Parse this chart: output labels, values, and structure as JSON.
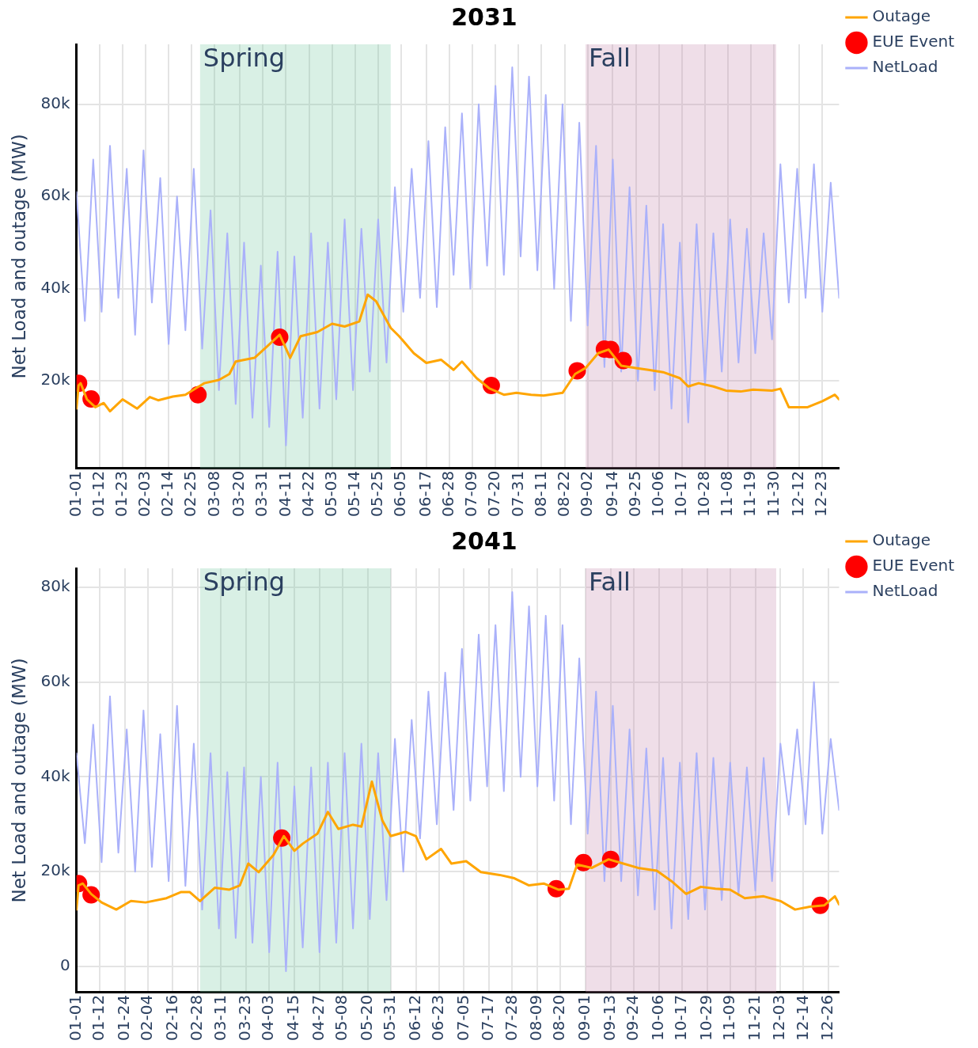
{
  "chart_data": [
    {
      "type": "line",
      "title": "2031",
      "ylabel": "Net Load and outage (MW)",
      "xlim": [
        "--01-01",
        "--12-31"
      ],
      "ylim": [
        1000,
        93000
      ],
      "xticks": [
        {
          "value": "--01-01",
          "label": "01-01"
        },
        {
          "value": "--01-12",
          "label": "01-12"
        },
        {
          "value": "--01-23",
          "label": "01-23"
        },
        {
          "value": "--02-03",
          "label": "02-03"
        },
        {
          "value": "--02-14",
          "label": "02-14"
        },
        {
          "value": "--02-25",
          "label": "02-25"
        },
        {
          "value": "--03-08",
          "label": "03-08"
        },
        {
          "value": "--03-20",
          "label": "03-20"
        },
        {
          "value": "--03-31",
          "label": "03-31"
        },
        {
          "value": "--04-11",
          "label": "04-11"
        },
        {
          "value": "--04-22",
          "label": "04-22"
        },
        {
          "value": "--05-03",
          "label": "05-03"
        },
        {
          "value": "--05-14",
          "label": "05-14"
        },
        {
          "value": "--05-25",
          "label": "05-25"
        },
        {
          "value": "--06-05",
          "label": "06-05"
        },
        {
          "value": "--06-17",
          "label": "06-17"
        },
        {
          "value": "--06-28",
          "label": "06-28"
        },
        {
          "value": "--07-09",
          "label": "07-09"
        },
        {
          "value": "--07-20",
          "label": "07-20"
        },
        {
          "value": "--07-31",
          "label": "07-31"
        },
        {
          "value": "--08-11",
          "label": "08-11"
        },
        {
          "value": "--08-22",
          "label": "08-22"
        },
        {
          "value": "--09-02",
          "label": "09-02"
        },
        {
          "value": "--09-14",
          "label": "09-14"
        },
        {
          "value": "--09-25",
          "label": "09-25"
        },
        {
          "value": "--10-06",
          "label": "10-06"
        },
        {
          "value": "--10-17",
          "label": "10-17"
        },
        {
          "value": "--10-28",
          "label": "10-28"
        },
        {
          "value": "--11-08",
          "label": "11-08"
        },
        {
          "value": "--11-19",
          "label": "11-19"
        },
        {
          "value": "--11-30",
          "label": "11-30"
        },
        {
          "value": "--12-12",
          "label": "12-12"
        },
        {
          "value": "--12-23",
          "label": "12-23"
        }
      ],
      "yticks": [
        {
          "value": 20000,
          "label": "20k"
        },
        {
          "value": 40000,
          "label": "40k"
        },
        {
          "value": 60000,
          "label": "60k"
        },
        {
          "value": 80000,
          "label": "80k"
        }
      ],
      "grid": true,
      "legend": "top right",
      "line_style": "solid",
      "bands": [
        {
          "axis": "x",
          "from": "--03-01",
          "to": "--05-31",
          "label": "Spring",
          "color": "#77c9a3"
        },
        {
          "axis": "x",
          "from": "--09-01",
          "to": "--12-01",
          "label": "Fall",
          "color": "#c78aad"
        }
      ],
      "series": [
        {
          "name": "Outage",
          "type": "line",
          "color": "#ffa500",
          "marker": "none",
          "x": [
            "--01-01",
            "--01-02",
            "--01-03",
            "--01-06",
            "--01-10",
            "--01-14",
            "--01-17",
            "--01-23",
            "--01-30",
            "--02-05",
            "--02-09",
            "--02-16",
            "--02-22",
            "--02-27",
            "--03-03",
            "--03-10",
            "--03-15",
            "--03-18",
            "--03-27",
            "--04-02",
            "--04-08",
            "--04-13",
            "--04-18",
            "--04-26",
            "--05-03",
            "--05-09",
            "--05-16",
            "--05-20",
            "--05-24",
            "--05-31",
            "--06-04",
            "--06-11",
            "--06-17",
            "--06-24",
            "--06-30",
            "--07-04",
            "--07-11",
            "--07-17",
            "--07-24",
            "--07-30",
            "--08-06",
            "--08-12",
            "--08-21",
            "--08-27",
            "--09-01",
            "--09-07",
            "--09-12",
            "--09-18",
            "--09-25",
            "--10-01",
            "--10-08",
            "--10-16",
            "--10-20",
            "--10-25",
            "--11-01",
            "--11-07",
            "--11-14",
            "--11-20",
            "--11-29",
            "--12-03",
            "--12-07",
            "--12-16",
            "--12-23",
            "--12-29",
            "--12-31"
          ],
          "values": [
            14000,
            19000,
            19500,
            16000,
            14300,
            15200,
            13400,
            16000,
            14000,
            16500,
            15800,
            16600,
            17000,
            18400,
            19500,
            20200,
            21500,
            24200,
            25000,
            27500,
            30000,
            25000,
            29700,
            30600,
            32400,
            31800,
            32900,
            38700,
            37300,
            31500,
            29700,
            26000,
            23900,
            24600,
            22400,
            24200,
            20600,
            18400,
            17000,
            17400,
            17000,
            16800,
            17400,
            21500,
            22800,
            26000,
            26800,
            23300,
            22800,
            22400,
            21900,
            20600,
            18800,
            19500,
            18800,
            17900,
            17700,
            18100,
            17900,
            18300,
            14300,
            14300,
            15600,
            17000,
            16000
          ]
        },
        {
          "name": "EUE Event",
          "type": "scatter",
          "color": "#ff0000",
          "marker": "circle",
          "x": [
            "--01-02",
            "--01-08",
            "--02-28",
            "--04-08",
            "--07-18",
            "--08-28",
            "--09-10",
            "--09-13",
            "--09-19"
          ],
          "values": [
            19500,
            16100,
            17000,
            29500,
            19000,
            22200,
            26900,
            26800,
            24400
          ]
        },
        {
          "name": "NetLoad",
          "type": "line",
          "color": "#aab1fa",
          "marker": "none",
          "x": [
            "--01-01",
            "--01-05",
            "--01-09",
            "--01-13",
            "--01-17",
            "--01-21",
            "--01-25",
            "--01-29",
            "--02-02",
            "--02-06",
            "--02-10",
            "--02-14",
            "--02-18",
            "--02-22",
            "--02-26",
            "--03-02",
            "--03-06",
            "--03-10",
            "--03-14",
            "--03-18",
            "--03-22",
            "--03-26",
            "--03-30",
            "--04-03",
            "--04-07",
            "--04-11",
            "--04-15",
            "--04-19",
            "--04-23",
            "--04-27",
            "--05-01",
            "--05-05",
            "--05-09",
            "--05-13",
            "--05-17",
            "--05-21",
            "--05-25",
            "--05-29",
            "--06-02",
            "--06-06",
            "--06-10",
            "--06-14",
            "--06-18",
            "--06-22",
            "--06-26",
            "--06-30",
            "--07-04",
            "--07-08",
            "--07-12",
            "--07-16",
            "--07-20",
            "--07-24",
            "--07-28",
            "--08-01",
            "--08-05",
            "--08-09",
            "--08-13",
            "--08-17",
            "--08-21",
            "--08-25",
            "--08-29",
            "--09-02",
            "--09-06",
            "--09-10",
            "--09-14",
            "--09-18",
            "--09-22",
            "--09-26",
            "--09-30",
            "--10-04",
            "--10-08",
            "--10-12",
            "--10-16",
            "--10-20",
            "--10-24",
            "--10-28",
            "--11-01",
            "--11-05",
            "--11-09",
            "--11-13",
            "--11-17",
            "--11-21",
            "--11-25",
            "--11-29",
            "--12-03",
            "--12-07",
            "--12-11",
            "--12-15",
            "--12-19",
            "--12-23",
            "--12-27",
            "--12-31"
          ],
          "values": [
            61000,
            33000,
            68000,
            35000,
            71000,
            38000,
            66000,
            30000,
            70000,
            37000,
            64000,
            28000,
            60000,
            31000,
            66000,
            27000,
            57000,
            18000,
            52000,
            15000,
            50000,
            12000,
            45000,
            10000,
            48000,
            6000,
            47000,
            12000,
            52000,
            14000,
            50000,
            16000,
            55000,
            18000,
            53000,
            22000,
            55000,
            24000,
            62000,
            35000,
            66000,
            38000,
            72000,
            36000,
            75000,
            43000,
            78000,
            40000,
            80000,
            45000,
            84000,
            43000,
            88000,
            47000,
            86000,
            44000,
            82000,
            40000,
            80000,
            33000,
            76000,
            32000,
            71000,
            23000,
            68000,
            22000,
            62000,
            20000,
            58000,
            18000,
            54000,
            14000,
            50000,
            11000,
            54000,
            19000,
            52000,
            22000,
            55000,
            24000,
            53000,
            26000,
            52000,
            29000,
            67000,
            37000,
            66000,
            38000,
            67000,
            35000,
            63000,
            38000
          ]
        }
      ]
    },
    {
      "type": "line",
      "title": "2041",
      "ylabel": "Net Load and outage (MW)",
      "xlim": [
        "--01-01",
        "--12-31"
      ],
      "ylim": [
        -5500,
        84000
      ],
      "xticks": [
        {
          "value": "--01-01",
          "label": "01-01"
        },
        {
          "value": "--01-12",
          "label": "01-12"
        },
        {
          "value": "--01-24",
          "label": "01-24"
        },
        {
          "value": "--02-04",
          "label": "02-04"
        },
        {
          "value": "--02-16",
          "label": "02-16"
        },
        {
          "value": "--02-28",
          "label": "02-28"
        },
        {
          "value": "--03-11",
          "label": "03-11"
        },
        {
          "value": "--03-23",
          "label": "03-23"
        },
        {
          "value": "--04-03",
          "label": "04-03"
        },
        {
          "value": "--04-15",
          "label": "04-15"
        },
        {
          "value": "--04-27",
          "label": "04-27"
        },
        {
          "value": "--05-08",
          "label": "05-08"
        },
        {
          "value": "--05-20",
          "label": "05-20"
        },
        {
          "value": "--05-31",
          "label": "05-31"
        },
        {
          "value": "--06-12",
          "label": "06-12"
        },
        {
          "value": "--06-23",
          "label": "06-23"
        },
        {
          "value": "--07-05",
          "label": "07-05"
        },
        {
          "value": "--07-17",
          "label": "07-17"
        },
        {
          "value": "--07-28",
          "label": "07-28"
        },
        {
          "value": "--08-09",
          "label": "08-09"
        },
        {
          "value": "--08-20",
          "label": "08-20"
        },
        {
          "value": "--09-01",
          "label": "09-01"
        },
        {
          "value": "--09-13",
          "label": "09-13"
        },
        {
          "value": "--09-24",
          "label": "09-24"
        },
        {
          "value": "--10-06",
          "label": "10-06"
        },
        {
          "value": "--10-17",
          "label": "10-17"
        },
        {
          "value": "--10-29",
          "label": "10-29"
        },
        {
          "value": "--11-09",
          "label": "11-09"
        },
        {
          "value": "--11-21",
          "label": "11-21"
        },
        {
          "value": "--12-03",
          "label": "12-03"
        },
        {
          "value": "--12-14",
          "label": "12-14"
        },
        {
          "value": "--12-26",
          "label": "12-26"
        }
      ],
      "yticks": [
        0,
        {
          "value": 20000,
          "label": "20k"
        },
        {
          "value": 40000,
          "label": "40k"
        },
        {
          "value": 60000,
          "label": "60k"
        },
        {
          "value": 80000,
          "label": "80k"
        }
      ],
      "grid": true,
      "legend": "top right",
      "line_style": "solid",
      "bands": [
        {
          "axis": "x",
          "from": "--03-01",
          "to": "--05-31",
          "label": "Spring",
          "color": "#77c9a3"
        },
        {
          "axis": "x",
          "from": "--09-01",
          "to": "--12-01",
          "label": "Fall",
          "color": "#c78aad"
        }
      ],
      "series": [
        {
          "name": "Outage",
          "type": "line",
          "color": "#ffa500",
          "marker": "none",
          "x": [
            "--01-01",
            "--01-02",
            "--01-04",
            "--01-08",
            "--01-13",
            "--01-20",
            "--01-27",
            "--02-03",
            "--02-13",
            "--02-20",
            "--02-24",
            "--03-01",
            "--03-08",
            "--03-15",
            "--03-20",
            "--03-24",
            "--03-29",
            "--04-05",
            "--04-10",
            "--04-15",
            "--04-19",
            "--04-26",
            "--05-01",
            "--05-06",
            "--05-13",
            "--05-17",
            "--05-22",
            "--05-27",
            "--05-31",
            "--06-07",
            "--06-12",
            "--06-17",
            "--06-24",
            "--06-29",
            "--07-06",
            "--07-13",
            "--07-22",
            "--07-29",
            "--08-05",
            "--08-12",
            "--08-19",
            "--08-24",
            "--08-28",
            "--09-04",
            "--09-12",
            "--09-19",
            "--09-26",
            "--10-05",
            "--10-12",
            "--10-19",
            "--10-26",
            "--11-02",
            "--11-09",
            "--11-16",
            "--11-25",
            "--12-03",
            "--12-10",
            "--12-17",
            "--12-24",
            "--12-29",
            "--12-31"
          ],
          "values": [
            12000,
            17100,
            17500,
            15300,
            13500,
            12000,
            13800,
            13500,
            14400,
            15700,
            15700,
            13800,
            16600,
            16200,
            17100,
            21700,
            19900,
            23500,
            27500,
            24400,
            25900,
            28000,
            32600,
            29000,
            29900,
            29500,
            39000,
            30800,
            27500,
            28400,
            27500,
            22600,
            24800,
            21700,
            22200,
            19900,
            19300,
            18600,
            17100,
            17500,
            16200,
            16400,
            21500,
            20800,
            22600,
            21700,
            20800,
            20200,
            18000,
            15300,
            16800,
            16400,
            16200,
            14400,
            14800,
            13800,
            12000,
            12600,
            12900,
            14800,
            13100
          ]
        },
        {
          "name": "EUE Event",
          "type": "scatter",
          "color": "#ff0000",
          "marker": "circle",
          "x": [
            "--01-02",
            "--01-08",
            "--04-09",
            "--08-18",
            "--08-31",
            "--09-13",
            "--12-22"
          ],
          "values": [
            17500,
            15100,
            27100,
            16400,
            21900,
            22600,
            12900
          ]
        },
        {
          "name": "NetLoad",
          "type": "line",
          "color": "#aab1fa",
          "marker": "none",
          "x": [
            "--01-01",
            "--01-05",
            "--01-09",
            "--01-13",
            "--01-17",
            "--01-21",
            "--01-25",
            "--01-29",
            "--02-02",
            "--02-06",
            "--02-10",
            "--02-14",
            "--02-18",
            "--02-22",
            "--02-26",
            "--03-02",
            "--03-06",
            "--03-10",
            "--03-14",
            "--03-18",
            "--03-22",
            "--03-26",
            "--03-30",
            "--04-03",
            "--04-07",
            "--04-11",
            "--04-15",
            "--04-19",
            "--04-23",
            "--04-27",
            "--05-01",
            "--05-05",
            "--05-09",
            "--05-13",
            "--05-17",
            "--05-21",
            "--05-25",
            "--05-29",
            "--06-02",
            "--06-06",
            "--06-10",
            "--06-14",
            "--06-18",
            "--06-22",
            "--06-26",
            "--06-30",
            "--07-04",
            "--07-08",
            "--07-12",
            "--07-16",
            "--07-20",
            "--07-24",
            "--07-28",
            "--08-01",
            "--08-05",
            "--08-09",
            "--08-13",
            "--08-17",
            "--08-21",
            "--08-25",
            "--08-29",
            "--09-02",
            "--09-06",
            "--09-10",
            "--09-14",
            "--09-18",
            "--09-22",
            "--09-26",
            "--09-30",
            "--10-04",
            "--10-08",
            "--10-12",
            "--10-16",
            "--10-20",
            "--10-24",
            "--10-28",
            "--11-01",
            "--11-05",
            "--11-09",
            "--11-13",
            "--11-17",
            "--11-21",
            "--11-25",
            "--11-29",
            "--12-03",
            "--12-07",
            "--12-11",
            "--12-15",
            "--12-19",
            "--12-23",
            "--12-27",
            "--12-31"
          ],
          "values": [
            45000,
            26000,
            51000,
            22000,
            57000,
            24000,
            50000,
            20000,
            54000,
            21000,
            49000,
            18000,
            55000,
            17000,
            47000,
            12000,
            45000,
            8000,
            41000,
            6000,
            42000,
            5000,
            40000,
            3000,
            43000,
            -1000,
            38000,
            4000,
            42000,
            3000,
            43000,
            5000,
            45000,
            8000,
            47000,
            10000,
            45000,
            14000,
            48000,
            20000,
            52000,
            27000,
            58000,
            30000,
            62000,
            33000,
            67000,
            35000,
            70000,
            38000,
            72000,
            37000,
            79000,
            40000,
            76000,
            38000,
            74000,
            35000,
            72000,
            30000,
            65000,
            28000,
            58000,
            18000,
            55000,
            18000,
            50000,
            15000,
            46000,
            12000,
            44000,
            8000,
            43000,
            10000,
            45000,
            12000,
            44000,
            14000,
            43000,
            15000,
            42000,
            16000,
            44000,
            18000,
            47000,
            32000,
            50000,
            30000,
            60000,
            28000,
            48000,
            33000
          ]
        }
      ]
    }
  ]
}
